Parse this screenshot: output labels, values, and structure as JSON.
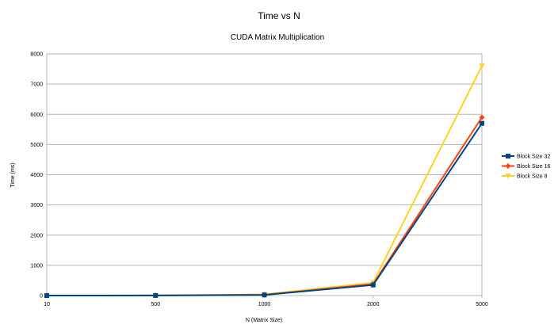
{
  "chart_data": {
    "type": "line",
    "title": "Time vs N",
    "subtitle": "CUDA Matrix Multiplication",
    "xlabel": "N (Matrix Size)",
    "ylabel": "Time (ms)",
    "categories": [
      "10",
      "500",
      "1000",
      "2000",
      "5000"
    ],
    "ylim": [
      0,
      8000
    ],
    "yticks": [
      0,
      1000,
      2000,
      3000,
      4000,
      5000,
      6000,
      7000,
      8000
    ],
    "grid": true,
    "legend_position": "right",
    "series": [
      {
        "name": "Block Size 32",
        "color": "#004586",
        "marker": "square",
        "values": [
          0,
          2,
          20,
          350,
          5700
        ]
      },
      {
        "name": "Block Size 16",
        "color": "#ff420e",
        "marker": "diamond",
        "values": [
          0,
          2,
          25,
          380,
          5900
        ]
      },
      {
        "name": "Block Size 8",
        "color": "#ffd320",
        "marker": "triangle-down",
        "values": [
          0,
          3,
          40,
          430,
          7600
        ]
      }
    ]
  }
}
